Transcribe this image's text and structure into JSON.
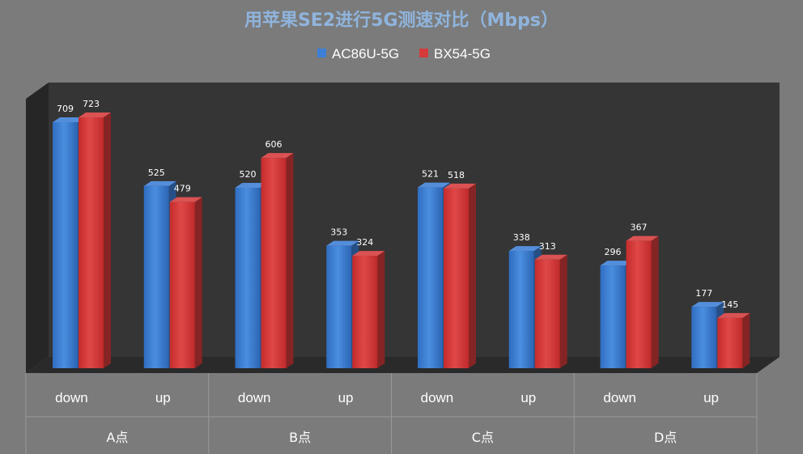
{
  "chart_data": {
    "type": "bar",
    "title": "用苹果SE2进行5G测速对比（Mbps）",
    "groups": [
      {
        "label": "A点",
        "categories": [
          "down",
          "up"
        ]
      },
      {
        "label": "B点",
        "categories": [
          "down",
          "up"
        ]
      },
      {
        "label": "C点",
        "categories": [
          "down",
          "up"
        ]
      },
      {
        "label": "D点",
        "categories": [
          "down",
          "up"
        ]
      }
    ],
    "categories": [
      "down",
      "up",
      "down",
      "up",
      "down",
      "up",
      "down",
      "up"
    ],
    "series": [
      {
        "name": "AC86U-5G",
        "color": "#3d7fd6",
        "values": [
          709,
          525,
          520,
          353,
          521,
          338,
          296,
          177
        ]
      },
      {
        "name": "BX54-5G",
        "color": "#d63a3a",
        "values": [
          723,
          479,
          606,
          324,
          518,
          313,
          367,
          145
        ]
      }
    ],
    "ylim": [
      0,
      800
    ],
    "grid": false,
    "legend_position": "top-center",
    "style": "3d-clustered-column"
  }
}
